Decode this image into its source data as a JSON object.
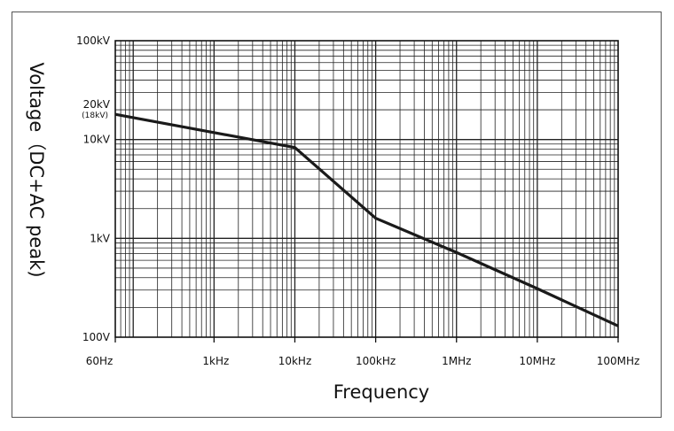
{
  "chart_data": {
    "type": "line",
    "title": "",
    "xlabel": "Frequency",
    "ylabel": "Voltage（DC+AC peak)",
    "x_scale": "log",
    "y_scale": "log",
    "xlim": [
      60,
      100000000
    ],
    "ylim": [
      100,
      100000
    ],
    "x_ticks": [
      {
        "value": 60,
        "label": "60Hz"
      },
      {
        "value": 1000,
        "label": "1kHz"
      },
      {
        "value": 10000,
        "label": "10kHz"
      },
      {
        "value": 100000,
        "label": "100kHz"
      },
      {
        "value": 1000000,
        "label": "1MHz"
      },
      {
        "value": 10000000,
        "label": "10MHz"
      },
      {
        "value": 100000000,
        "label": "100MHz"
      }
    ],
    "y_ticks": [
      {
        "value": 100,
        "label": "100V"
      },
      {
        "value": 1000,
        "label": "1kV"
      },
      {
        "value": 10000,
        "label": "10kV"
      },
      {
        "value": 20000,
        "label": "20kV"
      },
      {
        "value": 100000,
        "label": "100kV"
      }
    ],
    "y_tick_sublabel": {
      "value": 18000,
      "label": "(18kV)"
    },
    "grid": true,
    "series": [
      {
        "name": "Voltage",
        "color": "#1a1a1a",
        "points": [
          {
            "x": 60,
            "y": 18000
          },
          {
            "x": 10000,
            "y": 8300
          },
          {
            "x": 100000,
            "y": 1600
          },
          {
            "x": 1000000,
            "y": 720
          },
          {
            "x": 10000000,
            "y": 310
          },
          {
            "x": 100000000,
            "y": 130
          }
        ]
      }
    ]
  }
}
